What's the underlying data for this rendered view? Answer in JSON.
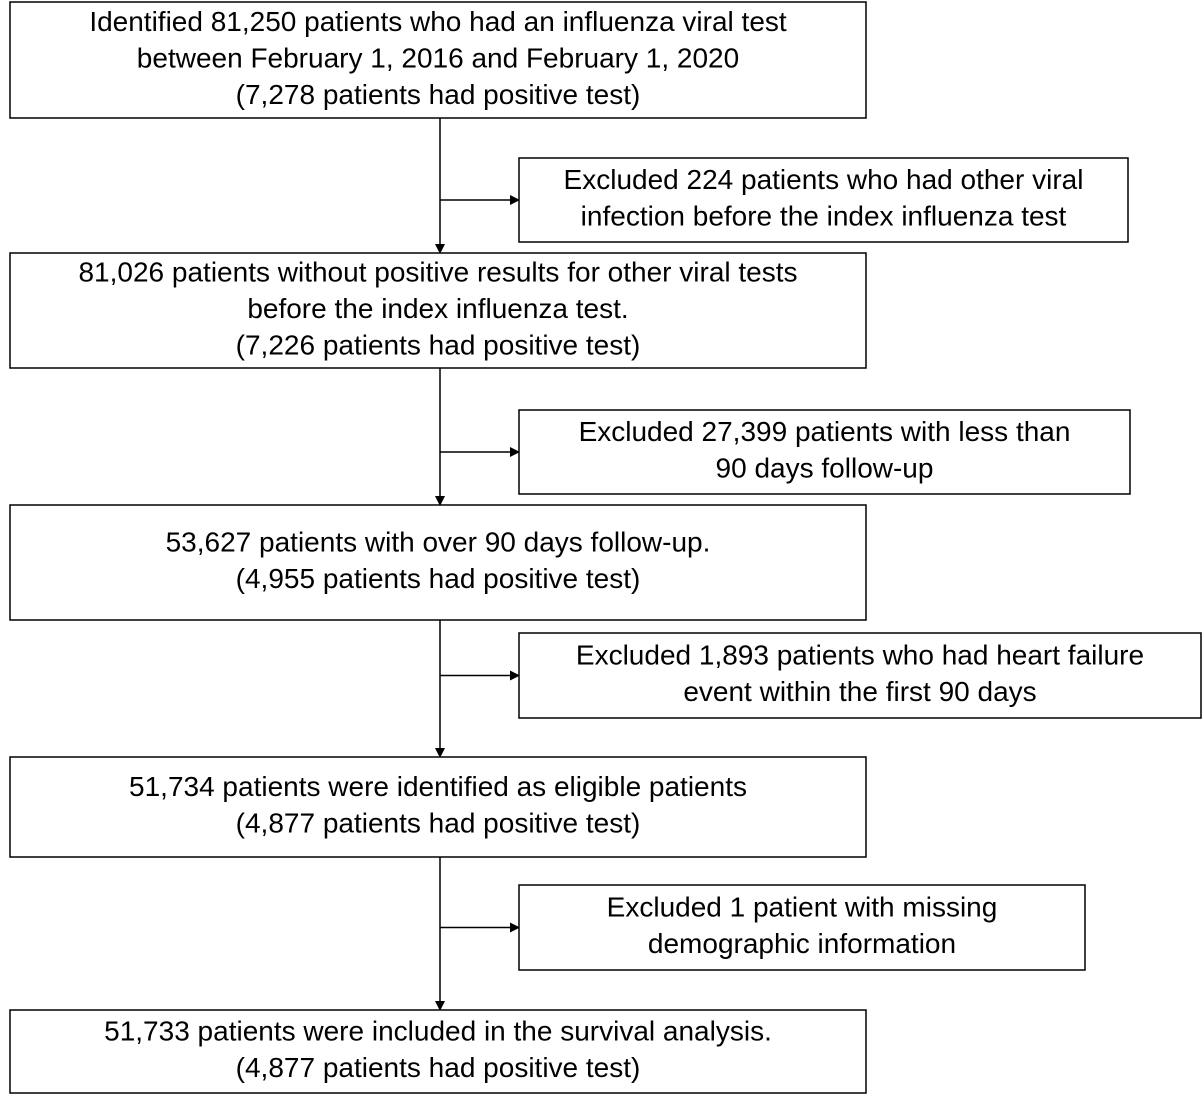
{
  "nodes": [
    {
      "lines": [
        "Identified 81,250 patients who had an influenza viral test",
        "between February 1, 2016 and February 1, 2020",
        "(7,278 patients had positive test)"
      ]
    },
    {
      "lines": [
        "81,026 patients without positive results for other viral tests",
        "before the index influenza test.",
        "(7,226 patients had positive test)"
      ]
    },
    {
      "lines": [
        "53,627 patients with over 90 days follow-up.",
        "(4,955 patients had positive test)"
      ]
    },
    {
      "lines": [
        "51,734 patients were identified as eligible patients",
        "(4,877 patients had positive test)"
      ]
    },
    {
      "lines": [
        "51,733 patients were included in the survival analysis.",
        "(4,877 patients had positive test)"
      ]
    }
  ],
  "exclusions": [
    {
      "lines": [
        "Excluded 224 patients who had other viral",
        "infection before the index influenza test"
      ]
    },
    {
      "lines": [
        "Excluded 27,399 patients with less than",
        "90 days follow-up"
      ]
    },
    {
      "lines": [
        "Excluded 1,893 patients who had heart failure",
        "event within the first 90 days"
      ]
    },
    {
      "lines": [
        "Excluded 1 patient with missing",
        "demographic information"
      ]
    }
  ]
}
